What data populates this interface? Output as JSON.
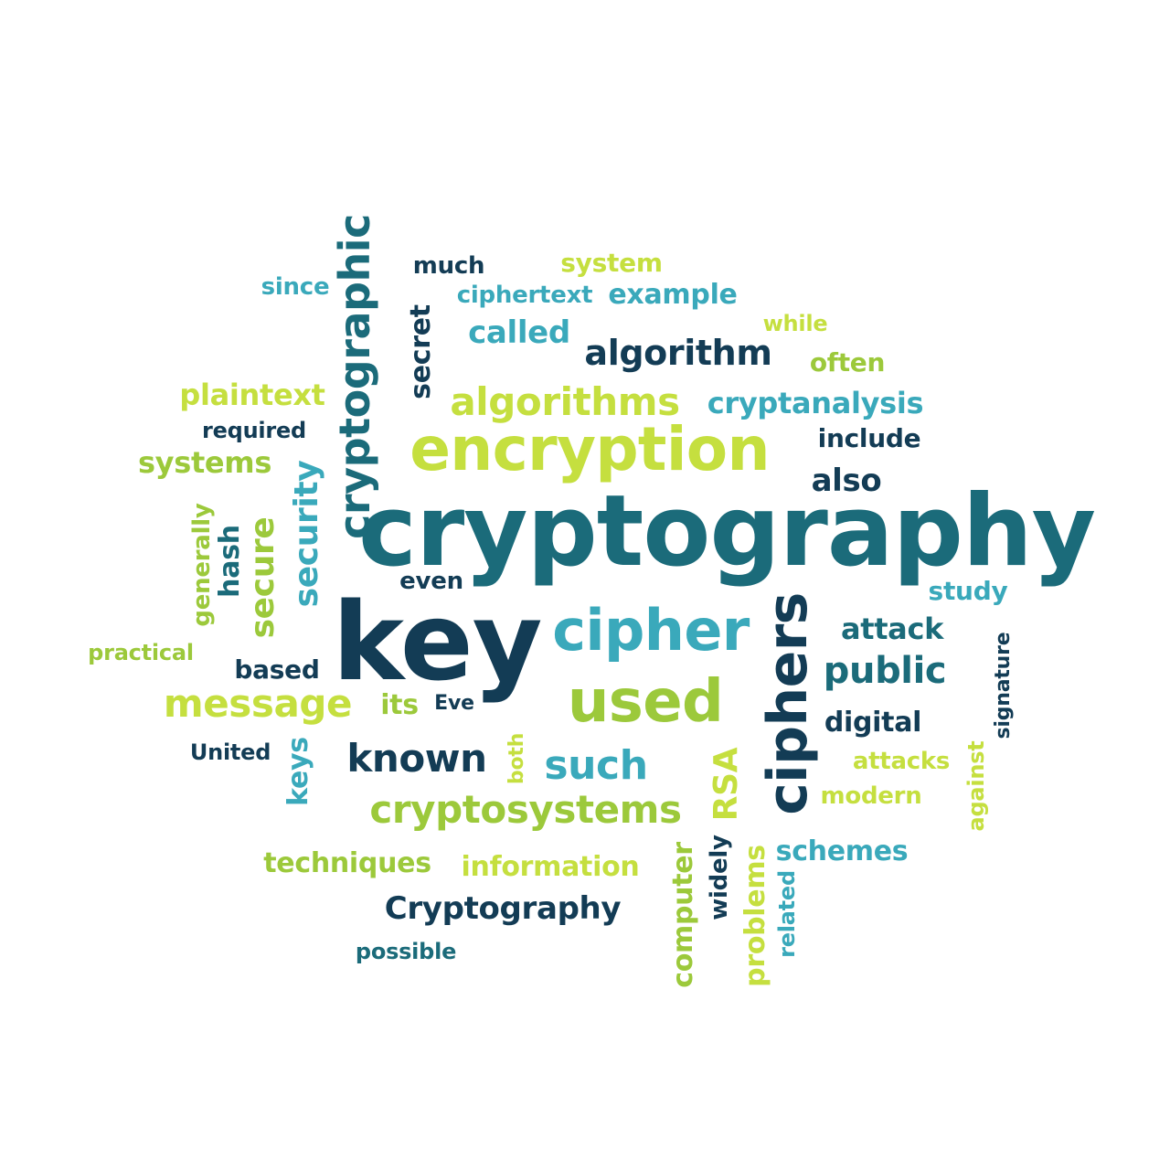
{
  "colors": {
    "navy": "#133c55",
    "teal": "#1b6b7a",
    "cyan": "#3aa9bb",
    "lime": "#c5df3f",
    "green": "#9cc93b"
  },
  "words": {
    "cryptography": "cryptography",
    "key": "key",
    "encryption": "encryption",
    "cipher": "cipher",
    "used": "used",
    "ciphers": "ciphers",
    "cryptographic": "cryptographic",
    "algorithms": "algorithms",
    "cryptosystems": "cryptosystems",
    "message": "message",
    "known": "known",
    "such": "such",
    "public": "public",
    "algorithm": "algorithm",
    "cryptanalysis": "cryptanalysis",
    "Cryptography": "Cryptography",
    "information": "information",
    "techniques": "techniques",
    "plaintext": "plaintext",
    "systems": "systems",
    "security": "security",
    "secure": "secure",
    "called": "called",
    "example": "example",
    "ciphertext": "ciphertext",
    "much": "much",
    "system": "system",
    "since": "since",
    "secret": "secret",
    "while": "while",
    "often": "often",
    "include": "include",
    "also": "also",
    "required": "required",
    "generally": "generally",
    "hash": "hash",
    "even": "even",
    "study": "study",
    "attack": "attack",
    "practical": "practical",
    "based": "based",
    "its": "its",
    "Eve": "Eve",
    "digital": "digital",
    "signature": "signature",
    "United": "United",
    "keys": "keys",
    "both": "both",
    "RSA": "RSA",
    "attacks": "attacks",
    "against": "against",
    "modern": "modern",
    "schemes": "schemes",
    "computer": "computer",
    "widely": "widely",
    "problems": "problems",
    "related": "related",
    "possible": "possible"
  }
}
